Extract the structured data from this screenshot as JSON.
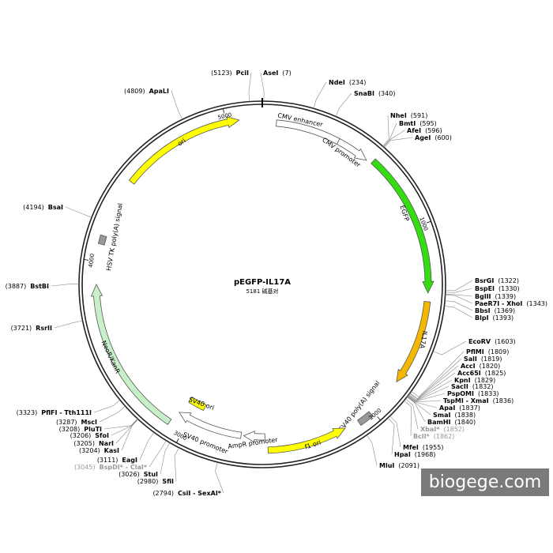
{
  "title": "pEGFP-IL17A",
  "subtitle": "5181 碱基对",
  "ticks": [
    1000,
    2000,
    3000,
    4000,
    5000
  ],
  "features": [
    {
      "label": "CMV enhancer"
    },
    {
      "label": "CMV promoter"
    },
    {
      "label": "EGFP"
    },
    {
      "label": "IL17A"
    },
    {
      "label": "SV40 poly(A) signal"
    },
    {
      "label": "f1 ori"
    },
    {
      "label": "AmpR promoter"
    },
    {
      "label": "SV40 promoter"
    },
    {
      "label": "SV40 ori"
    },
    {
      "label": "NeoR/KanR"
    },
    {
      "label": "HSV TK poly(A) signal"
    },
    {
      "label": "ori"
    }
  ],
  "sites": [
    {
      "name": "PciI",
      "position": "(5123)"
    },
    {
      "name": "AseI",
      "position": "(7)"
    },
    {
      "name": "NdeI",
      "position": "(234)"
    },
    {
      "name": "SnaBI",
      "position": "(340)"
    },
    {
      "name": "NheI",
      "position": "(591)"
    },
    {
      "name": "BmtI",
      "position": "(595)"
    },
    {
      "name": "AfeI",
      "position": "(596)"
    },
    {
      "name": "AgeI",
      "position": "(600)"
    },
    {
      "name": "BsrGI",
      "position": "(1322)"
    },
    {
      "name": "BspEI",
      "position": "(1330)"
    },
    {
      "name": "BglII",
      "position": "(1339)"
    },
    {
      "name": "PaeR7I - XhoI",
      "position": "(1343)"
    },
    {
      "name": "BbsI",
      "position": "(1369)"
    },
    {
      "name": "BlpI",
      "position": "(1393)"
    },
    {
      "name": "EcoRV",
      "position": "(1603)"
    },
    {
      "name": "PflMI",
      "position": "(1809)"
    },
    {
      "name": "SalI",
      "position": "(1819)"
    },
    {
      "name": "AccI",
      "position": "(1820)"
    },
    {
      "name": "Acc65I",
      "position": "(1825)"
    },
    {
      "name": "KpnI",
      "position": "(1829)"
    },
    {
      "name": "SacII",
      "position": "(1832)"
    },
    {
      "name": "PspOMI",
      "position": "(1833)"
    },
    {
      "name": "TspMI - XmaI",
      "position": "(1836)"
    },
    {
      "name": "ApaI",
      "position": "(1837)"
    },
    {
      "name": "SmaI",
      "position": "(1838)"
    },
    {
      "name": "BamHI",
      "position": "(1840)"
    },
    {
      "name": "XbaI*",
      "position": "(1852)"
    },
    {
      "name": "BclI*",
      "position": "(1862)"
    },
    {
      "name": "MfeI",
      "position": "(1955)"
    },
    {
      "name": "HpaI",
      "position": "(1968)"
    },
    {
      "name": "MluI",
      "position": "(2091)"
    },
    {
      "name": "CsiI - SexAI*",
      "position": "(2794)"
    },
    {
      "name": "SfiI",
      "position": "(2980)"
    },
    {
      "name": "StuI",
      "position": "(3026)"
    },
    {
      "name": "BspDI* - ClaI*",
      "position": "(3045)"
    },
    {
      "name": "EagI",
      "position": "(3111)"
    },
    {
      "name": "KasI",
      "position": "(3204)"
    },
    {
      "name": "NarI",
      "position": "(3205)"
    },
    {
      "name": "SfoI",
      "position": "(3206)"
    },
    {
      "name": "PluTI",
      "position": "(3208)"
    },
    {
      "name": "MscI",
      "position": "(3287)"
    },
    {
      "name": "PflFI - Tth111I",
      "position": "(3323)"
    },
    {
      "name": "RsrII",
      "position": "(3721)"
    },
    {
      "name": "BstBI",
      "position": "(3887)"
    },
    {
      "name": "BsaI",
      "position": "(4194)"
    },
    {
      "name": "ApaLI",
      "position": "(4809)"
    }
  ],
  "watermark": "biogege.com"
}
